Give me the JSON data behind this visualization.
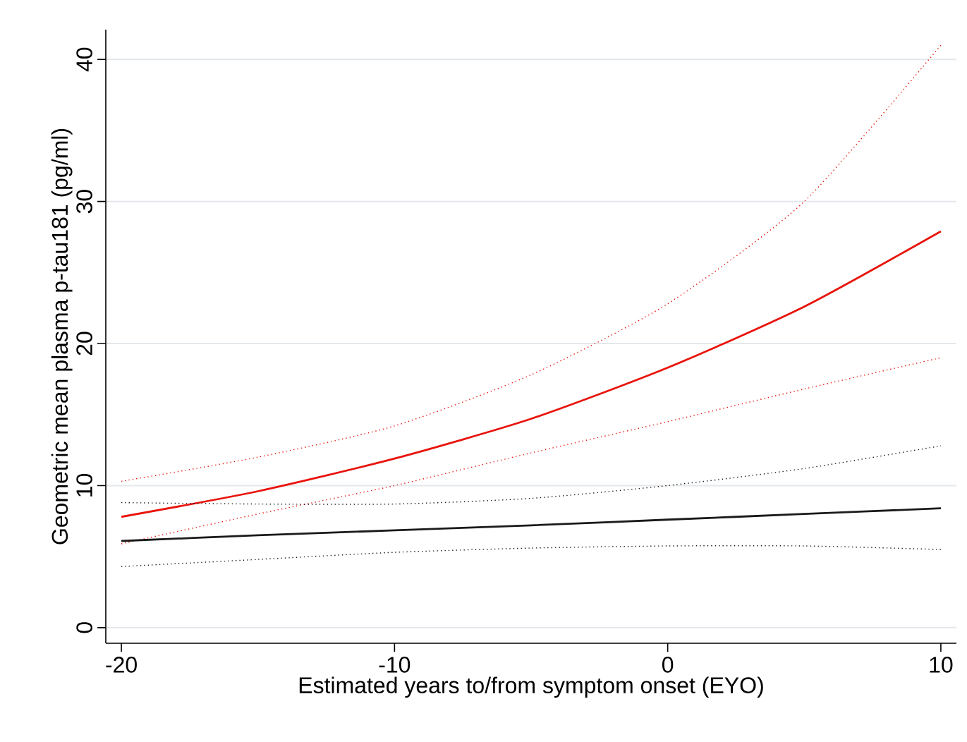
{
  "chart_data": {
    "type": "line",
    "xlabel": "Estimated years to/from symptom onset (EYO)",
    "ylabel": "Geometric mean plasma p-tau181 (pg/ml)",
    "x": [
      -20,
      -15,
      -10,
      -5,
      0,
      5,
      10
    ],
    "series": [
      {
        "color": "#e8140c",
        "line_style": "solid",
        "values": [
          7.8,
          9.6,
          11.9,
          14.7,
          18.3,
          22.6,
          27.9
        ]
      },
      {
        "color": "#e8140c",
        "line_style": "dotted",
        "values": [
          10.3,
          12.0,
          14.2,
          17.8,
          22.8,
          30.0,
          41.0
        ]
      },
      {
        "color": "#e8140c",
        "line_style": "dotted",
        "values": [
          5.9,
          8.0,
          10.0,
          12.3,
          14.5,
          16.8,
          19.0
        ]
      },
      {
        "color": "#1a1a1a",
        "line_style": "solid",
        "values": [
          6.1,
          6.5,
          6.85,
          7.2,
          7.6,
          8.0,
          8.4
        ]
      },
      {
        "color": "#1a1a1a",
        "line_style": "dotted",
        "values": [
          8.8,
          8.7,
          8.7,
          9.1,
          10.0,
          11.2,
          12.8
        ]
      },
      {
        "color": "#1a1a1a",
        "line_style": "dotted",
        "values": [
          4.3,
          4.8,
          5.3,
          5.6,
          5.75,
          5.75,
          5.5
        ]
      }
    ],
    "xlim": [
      -20.57,
      10.57
    ],
    "ylim": [
      -1.1,
      42.1
    ],
    "xticks": [
      -20,
      -10,
      0,
      10
    ],
    "yticks": [
      0,
      10,
      20,
      30,
      40
    ],
    "grid": "y",
    "marker": "none"
  }
}
